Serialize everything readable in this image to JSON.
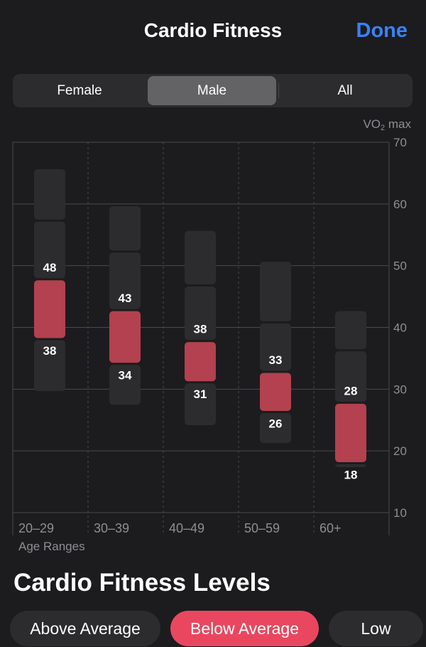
{
  "header": {
    "title": "Cardio Fitness",
    "done_label": "Done"
  },
  "segmented": {
    "options": [
      "Female",
      "Male",
      "All"
    ],
    "selected": "Male"
  },
  "chart_data": {
    "type": "range-bar",
    "unit_label": "VO",
    "unit_sub": "2",
    "unit_suffix": " max",
    "xlabel": "Age Ranges",
    "categories": [
      "20–29",
      "30–39",
      "40–49",
      "50–59",
      "60+"
    ],
    "ylim": [
      10,
      70
    ],
    "yticks": [
      10,
      20,
      30,
      40,
      50,
      60,
      70
    ],
    "grid": true,
    "y_axis_side": "right",
    "series": [
      {
        "category": "20–29",
        "segments": [
          [
            29.5,
            38.1
          ],
          [
            38.1,
            47.8
          ],
          [
            47.8,
            57.3
          ],
          [
            57.3,
            65.8
          ]
        ],
        "highlight_index": 1,
        "labels": [
          "38",
          "48"
        ]
      },
      {
        "category": "30–39",
        "segments": [
          [
            27.3,
            34.1
          ],
          [
            34.1,
            42.8
          ],
          [
            42.8,
            52.3
          ],
          [
            52.3,
            59.8
          ]
        ],
        "highlight_index": 1,
        "labels": [
          "34",
          "43"
        ]
      },
      {
        "category": "40–49",
        "segments": [
          [
            24.0,
            31.1
          ],
          [
            31.1,
            37.8
          ],
          [
            37.8,
            46.8
          ],
          [
            46.8,
            55.8
          ]
        ],
        "highlight_index": 1,
        "labels": [
          "31",
          "38"
        ]
      },
      {
        "category": "50–59",
        "segments": [
          [
            21.1,
            26.3
          ],
          [
            26.3,
            32.8
          ],
          [
            32.8,
            40.8
          ],
          [
            40.8,
            50.8
          ]
        ],
        "highlight_index": 1,
        "labels": [
          "26",
          "33"
        ]
      },
      {
        "category": "60+",
        "segments": [
          [
            17.2,
            18.0
          ],
          [
            18.0,
            27.8
          ],
          [
            27.8,
            36.3
          ],
          [
            36.3,
            42.8
          ]
        ],
        "highlight_index": 1,
        "labels": [
          "18",
          "28"
        ]
      }
    ],
    "colors": {
      "highlight": "#b3414f",
      "range": "#2c2c2e",
      "grid": "#4a4a4c",
      "label": "#8e8e93"
    }
  },
  "levels": {
    "title": "Cardio Fitness Levels",
    "options": [
      "Above Average",
      "Below Average",
      "Low"
    ],
    "selected": "Below Average"
  }
}
